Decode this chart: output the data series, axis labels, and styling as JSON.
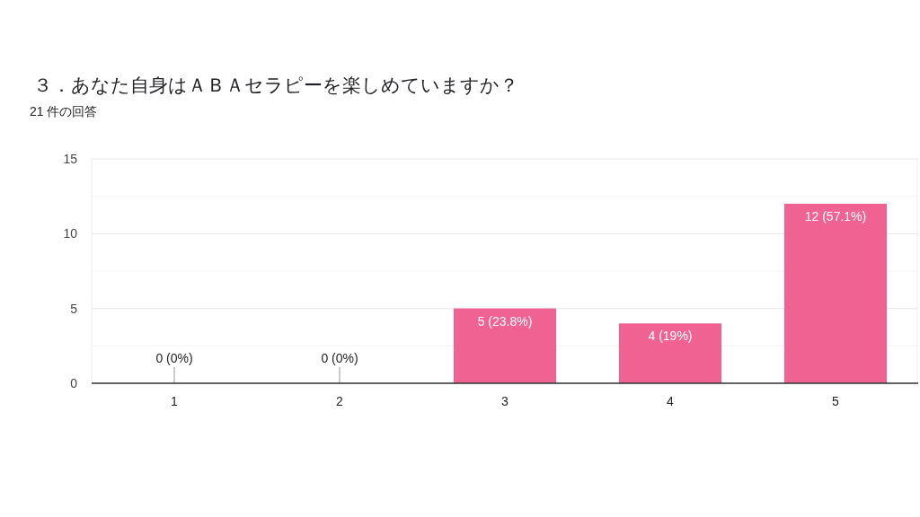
{
  "chart_data": {
    "type": "bar",
    "title": "３．あなた自身はＡＢＡセラピーを楽しめていますか？",
    "subtitle": "21 件の回答",
    "categories": [
      "1",
      "2",
      "3",
      "4",
      "5"
    ],
    "values": [
      0,
      0,
      5,
      4,
      12
    ],
    "value_labels": [
      "0 (0%)",
      "0 (0%)",
      "5 (23.8%)",
      "4 (19%)",
      "12 (57.1%)"
    ],
    "color": "#f06292",
    "ylim": [
      0,
      15
    ],
    "yticks": [
      0,
      {
        "value": 2.5,
        "label": null
      },
      5,
      {
        "value": 7.5,
        "label": null
      },
      10,
      {
        "value": 12.5,
        "label": null
      },
      15
    ],
    "grid": true
  }
}
